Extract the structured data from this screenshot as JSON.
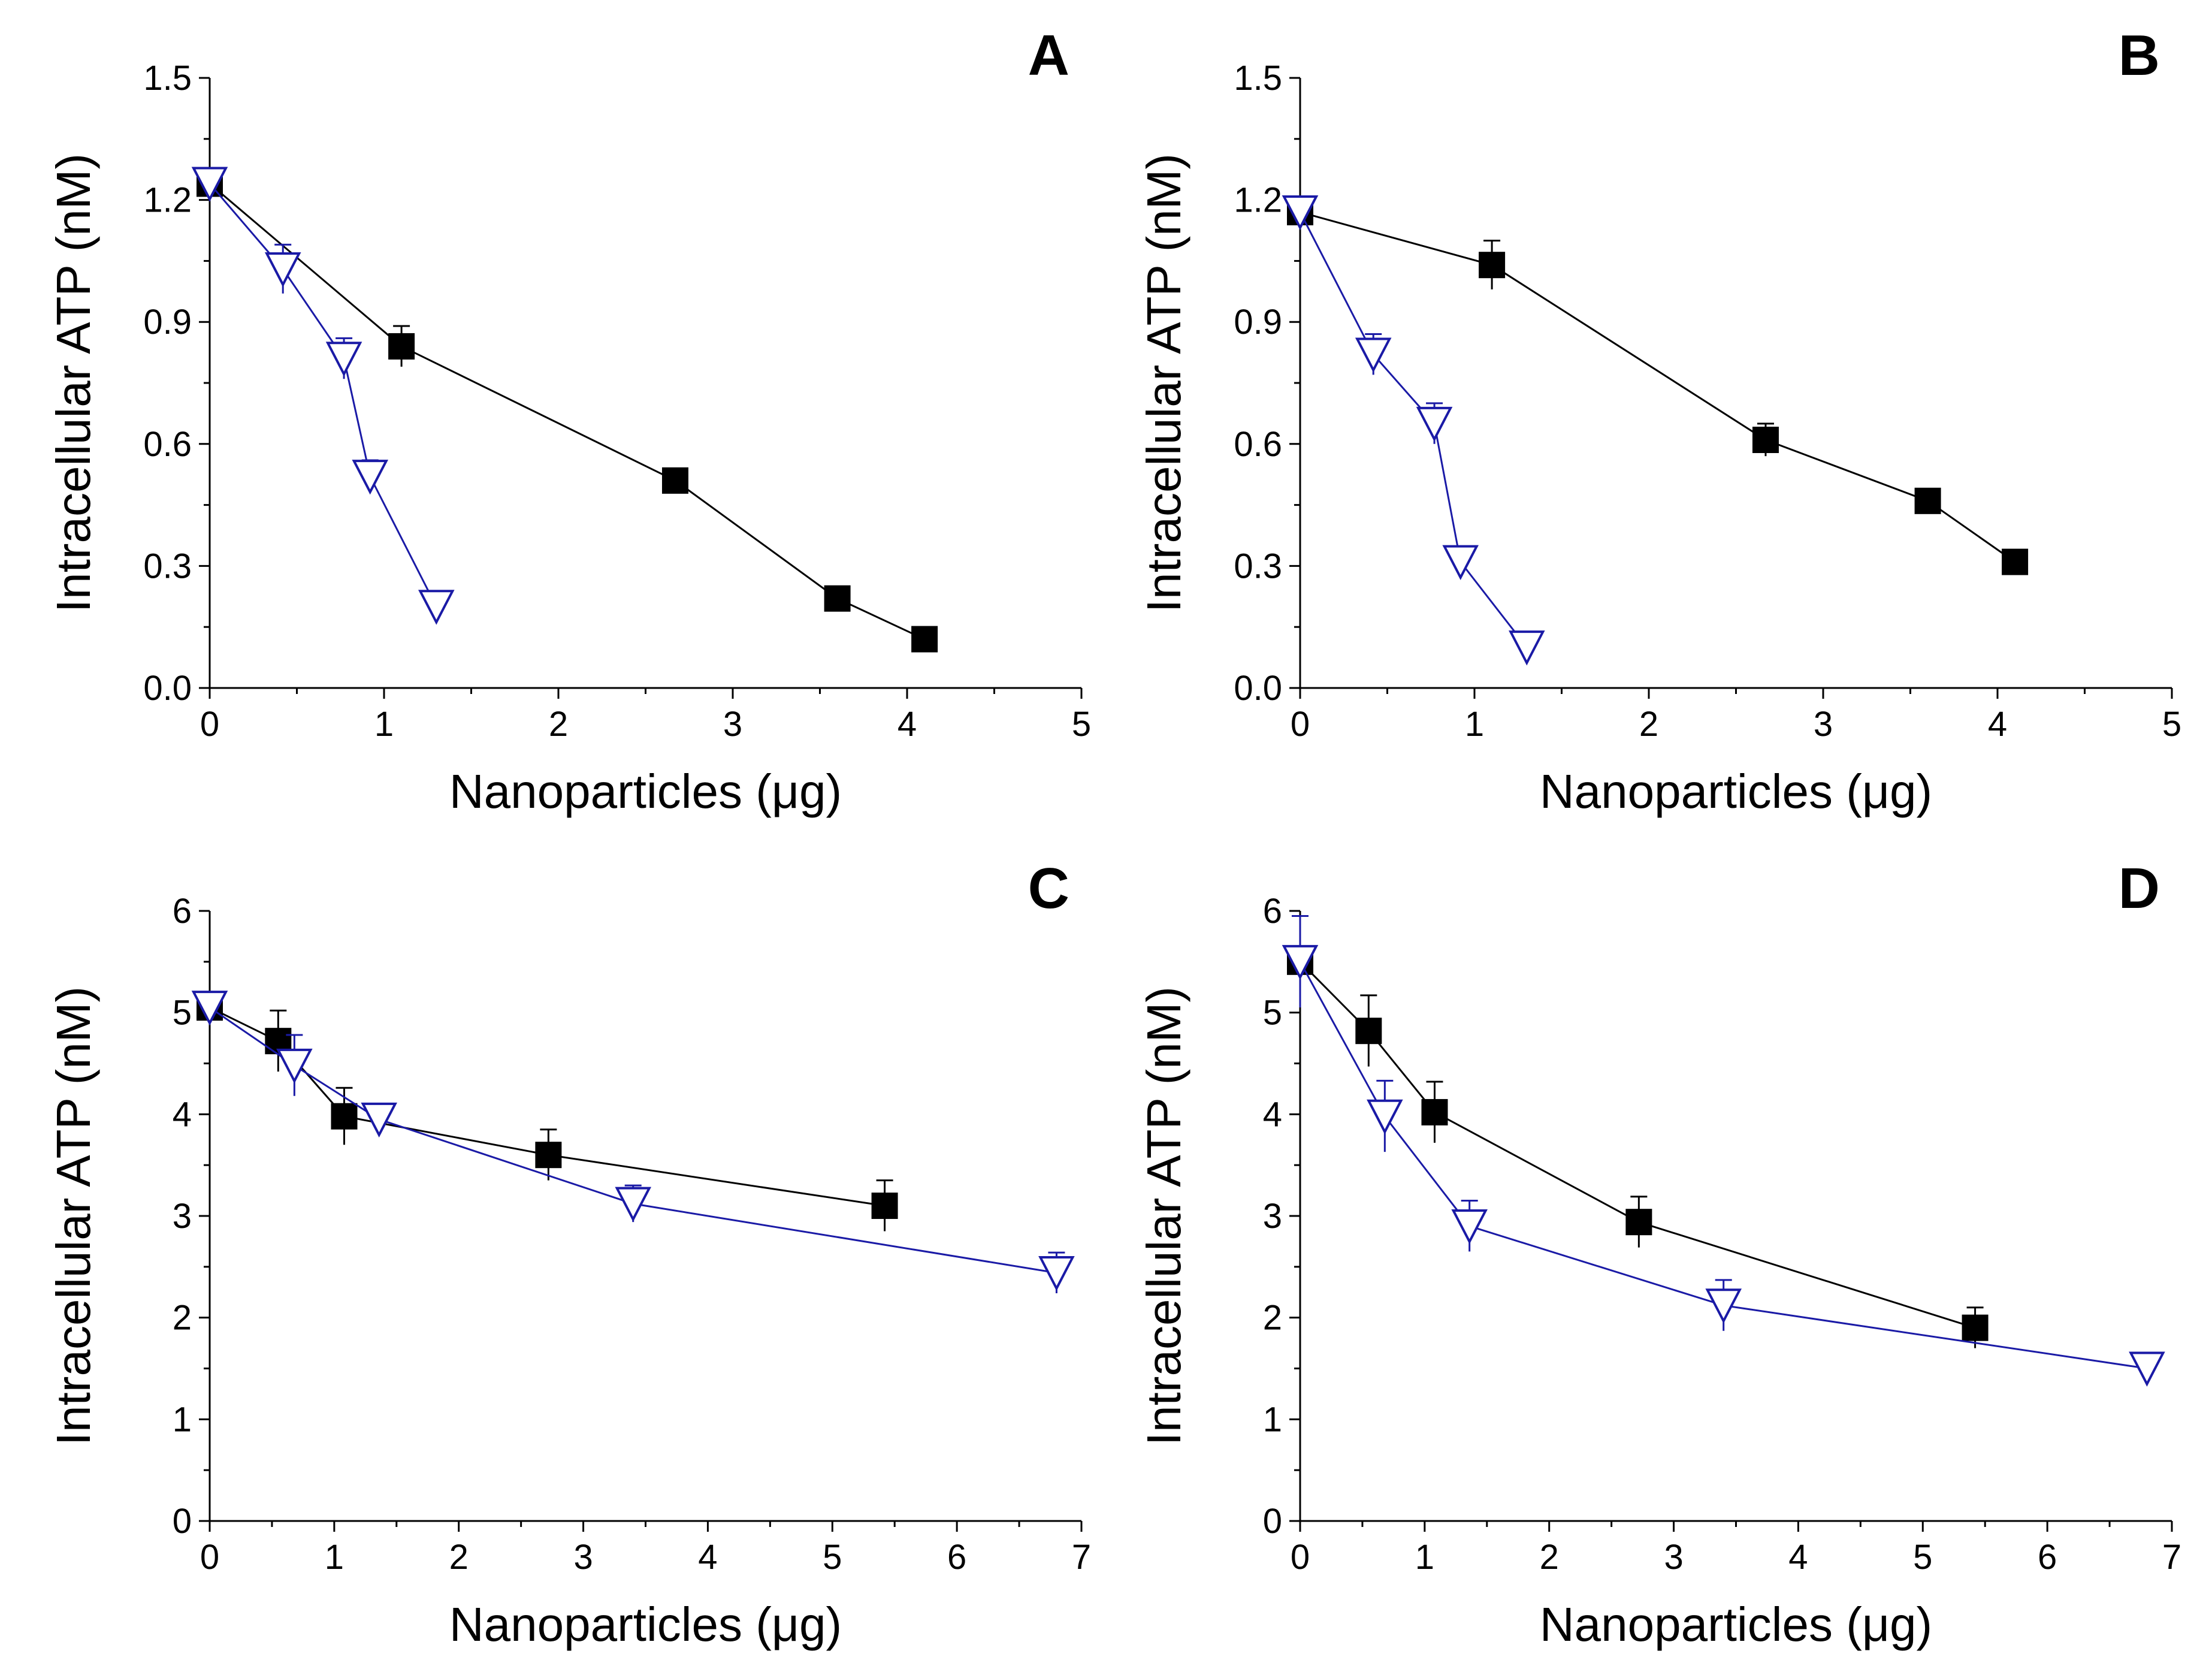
{
  "chart_data": [
    {
      "type": "line",
      "panel": "A",
      "xlabel": "Nanoparticles (μg)",
      "ylabel": "Intracellular ATP (nM)",
      "xlim": [
        0,
        5
      ],
      "ylim": [
        0,
        1.5
      ],
      "xticks": [
        0,
        1,
        2,
        3,
        4,
        5
      ],
      "yticks": [
        0.0,
        0.3,
        0.6,
        0.9,
        1.2,
        1.5
      ],
      "xtick_labels": [
        "0",
        "1",
        "2",
        "3",
        "4",
        "5"
      ],
      "ytick_labels": [
        "0.0",
        "0.3",
        "0.6",
        "0.9",
        "1.2",
        "1.5"
      ],
      "series": [
        {
          "name": "filled square",
          "marker": "square",
          "color": "#000000",
          "x": [
            0,
            1.1,
            2.67,
            3.6,
            4.1
          ],
          "y": [
            1.24,
            0.84,
            0.51,
            0.22,
            0.12
          ],
          "err": [
            0.03,
            0.05,
            0.03,
            0.02,
            0.02
          ]
        },
        {
          "name": "open triangle",
          "marker": "triangle-down",
          "color": "#1a1aa6",
          "x": [
            0,
            0.42,
            0.77,
            0.92,
            1.3
          ],
          "y": [
            1.24,
            1.03,
            0.81,
            0.52,
            0.2
          ],
          "err": [
            0.03,
            0.06,
            0.05,
            0.04,
            0.02
          ]
        }
      ]
    },
    {
      "type": "line",
      "panel": "B",
      "xlabel": "Nanoparticles (μg)",
      "ylabel": "Intracellular ATP (nM)",
      "xlim": [
        0,
        5
      ],
      "ylim": [
        0,
        1.5
      ],
      "xticks": [
        0,
        1,
        2,
        3,
        4,
        5
      ],
      "yticks": [
        0.0,
        0.3,
        0.6,
        0.9,
        1.2,
        1.5
      ],
      "xtick_labels": [
        "0",
        "1",
        "2",
        "3",
        "4",
        "5"
      ],
      "ytick_labels": [
        "0.0",
        "0.3",
        "0.6",
        "0.9",
        "1.2",
        "1.5"
      ],
      "series": [
        {
          "name": "filled square",
          "marker": "square",
          "color": "#000000",
          "x": [
            0,
            1.1,
            2.67,
            3.6,
            4.1
          ],
          "y": [
            1.17,
            1.04,
            0.61,
            0.46,
            0.31
          ],
          "err": [
            0.03,
            0.06,
            0.04,
            0.03,
            0.02
          ]
        },
        {
          "name": "open triangle",
          "marker": "triangle-down",
          "color": "#1a1aa6",
          "x": [
            0,
            0.42,
            0.77,
            0.92,
            1.3
          ],
          "y": [
            1.17,
            0.82,
            0.65,
            0.31,
            0.1
          ],
          "err": [
            0.03,
            0.05,
            0.05,
            0.03,
            0.02
          ]
        }
      ]
    },
    {
      "type": "line",
      "panel": "C",
      "xlabel": "Nanoparticles (μg)",
      "ylabel": "Intracellular ATP (nM)",
      "xlim": [
        0,
        7
      ],
      "ylim": [
        0,
        6
      ],
      "xticks": [
        0,
        1,
        2,
        3,
        4,
        5,
        6,
        7
      ],
      "yticks": [
        0,
        1,
        2,
        3,
        4,
        5,
        6
      ],
      "xtick_labels": [
        "0",
        "1",
        "2",
        "3",
        "4",
        "5",
        "6",
        "7"
      ],
      "ytick_labels": [
        "0",
        "1",
        "2",
        "3",
        "4",
        "5",
        "6"
      ],
      "series": [
        {
          "name": "filled square",
          "marker": "square",
          "color": "#000000",
          "x": [
            0,
            0.55,
            1.08,
            2.72,
            5.42
          ],
          "y": [
            5.05,
            4.72,
            3.98,
            3.6,
            3.1
          ],
          "err": [
            0.08,
            0.3,
            0.28,
            0.25,
            0.25
          ]
        },
        {
          "name": "open triangle",
          "marker": "triangle-down",
          "color": "#1a1aa6",
          "x": [
            0,
            0.68,
            1.36,
            3.4,
            6.8
          ],
          "y": [
            5.05,
            4.48,
            3.95,
            3.12,
            2.44
          ],
          "err": [
            0.08,
            0.3,
            0.12,
            0.18,
            0.2
          ]
        }
      ]
    },
    {
      "type": "line",
      "panel": "D",
      "xlabel": "Nanoparticles (μg)",
      "ylabel": "Intracellular ATP (nM)",
      "xlim": [
        0,
        7
      ],
      "ylim": [
        0,
        6
      ],
      "xticks": [
        0,
        1,
        2,
        3,
        4,
        5,
        6,
        7
      ],
      "yticks": [
        0,
        1,
        2,
        3,
        4,
        5,
        6
      ],
      "xtick_labels": [
        "0",
        "1",
        "2",
        "3",
        "4",
        "5",
        "6",
        "7"
      ],
      "ytick_labels": [
        "0",
        "1",
        "2",
        "3",
        "4",
        "5",
        "6"
      ],
      "series": [
        {
          "name": "filled square",
          "marker": "square",
          "color": "#000000",
          "x": [
            0,
            0.55,
            1.08,
            2.72,
            5.42
          ],
          "y": [
            5.5,
            4.82,
            4.02,
            2.94,
            1.9
          ],
          "err": [
            0.1,
            0.35,
            0.3,
            0.25,
            0.2
          ]
        },
        {
          "name": "open triangle",
          "marker": "triangle-down",
          "color": "#1a1aa6",
          "x": [
            0,
            0.68,
            1.36,
            3.4,
            6.8
          ],
          "y": [
            5.5,
            3.98,
            2.9,
            2.12,
            1.5
          ],
          "err": [
            0.45,
            0.35,
            0.25,
            0.25,
            0.15
          ]
        }
      ]
    }
  ]
}
